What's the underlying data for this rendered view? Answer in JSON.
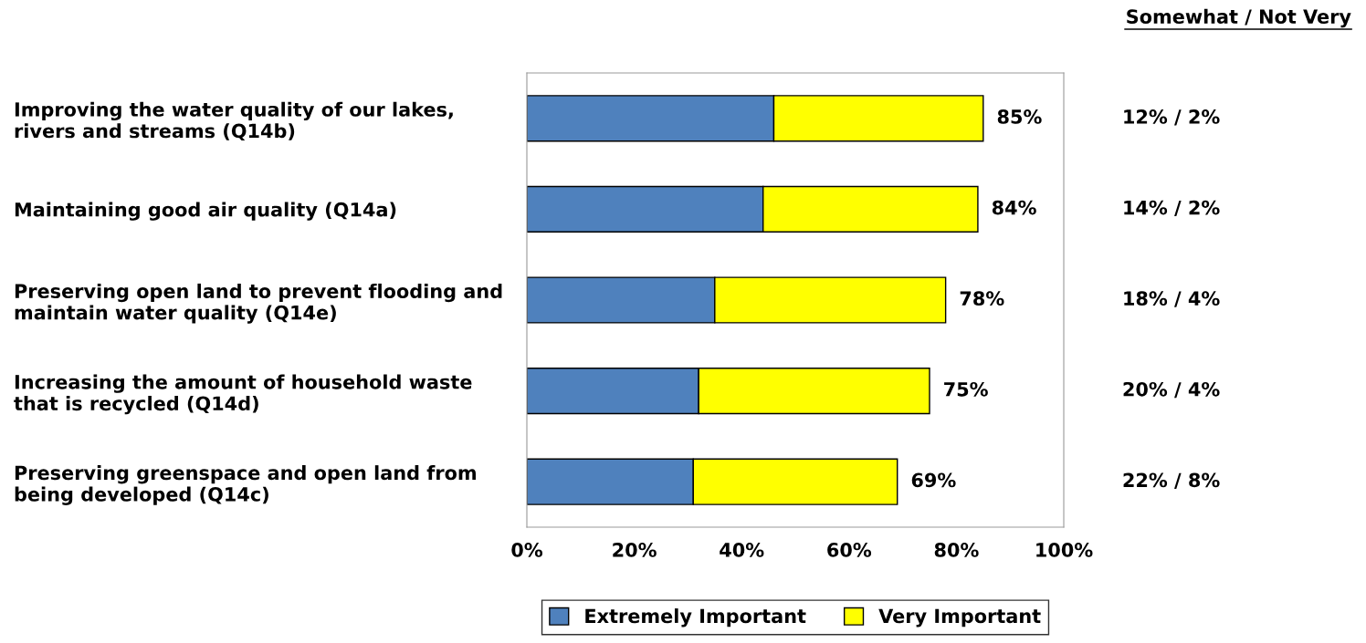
{
  "chart_data": {
    "type": "bar",
    "orientation": "horizontal",
    "stacked": true,
    "categories": [
      "Improving the water quality of our lakes,\nrivers and streams (Q14b)",
      "Maintaining good air quality (Q14a)",
      "Preserving open land to prevent flooding and\nmaintain water quality (Q14e)",
      "Increasing the amount of household waste\nthat is recycled (Q14d)",
      "Preserving greenspace and open land from\nbeing developed (Q14c)"
    ],
    "series": [
      {
        "name": "Extremely Important",
        "color": "#4f81bd",
        "values": [
          46,
          44,
          35,
          32,
          31
        ]
      },
      {
        "name": "Very Important",
        "color": "#ffff00",
        "values": [
          39,
          40,
          43,
          43,
          38
        ]
      }
    ],
    "totals": [
      "85%",
      "84%",
      "78%",
      "75%",
      "69%"
    ],
    "xlim": [
      0,
      100
    ],
    "xticks": [
      {
        "value": 0,
        "label": "0%"
      },
      {
        "value": 20,
        "label": "20%"
      },
      {
        "value": 40,
        "label": "40%"
      },
      {
        "value": 60,
        "label": "60%"
      },
      {
        "value": 80,
        "label": "80%"
      },
      {
        "value": 100,
        "label": "100%"
      }
    ],
    "tick_labels": "x",
    "grid": false,
    "legend": "bottom",
    "annotations": [
      "Somewhat / Not Very",
      "12% / 2%",
      "14% / 2%",
      "18% / 4%",
      "20% / 4%",
      "22% / 8%"
    ]
  }
}
